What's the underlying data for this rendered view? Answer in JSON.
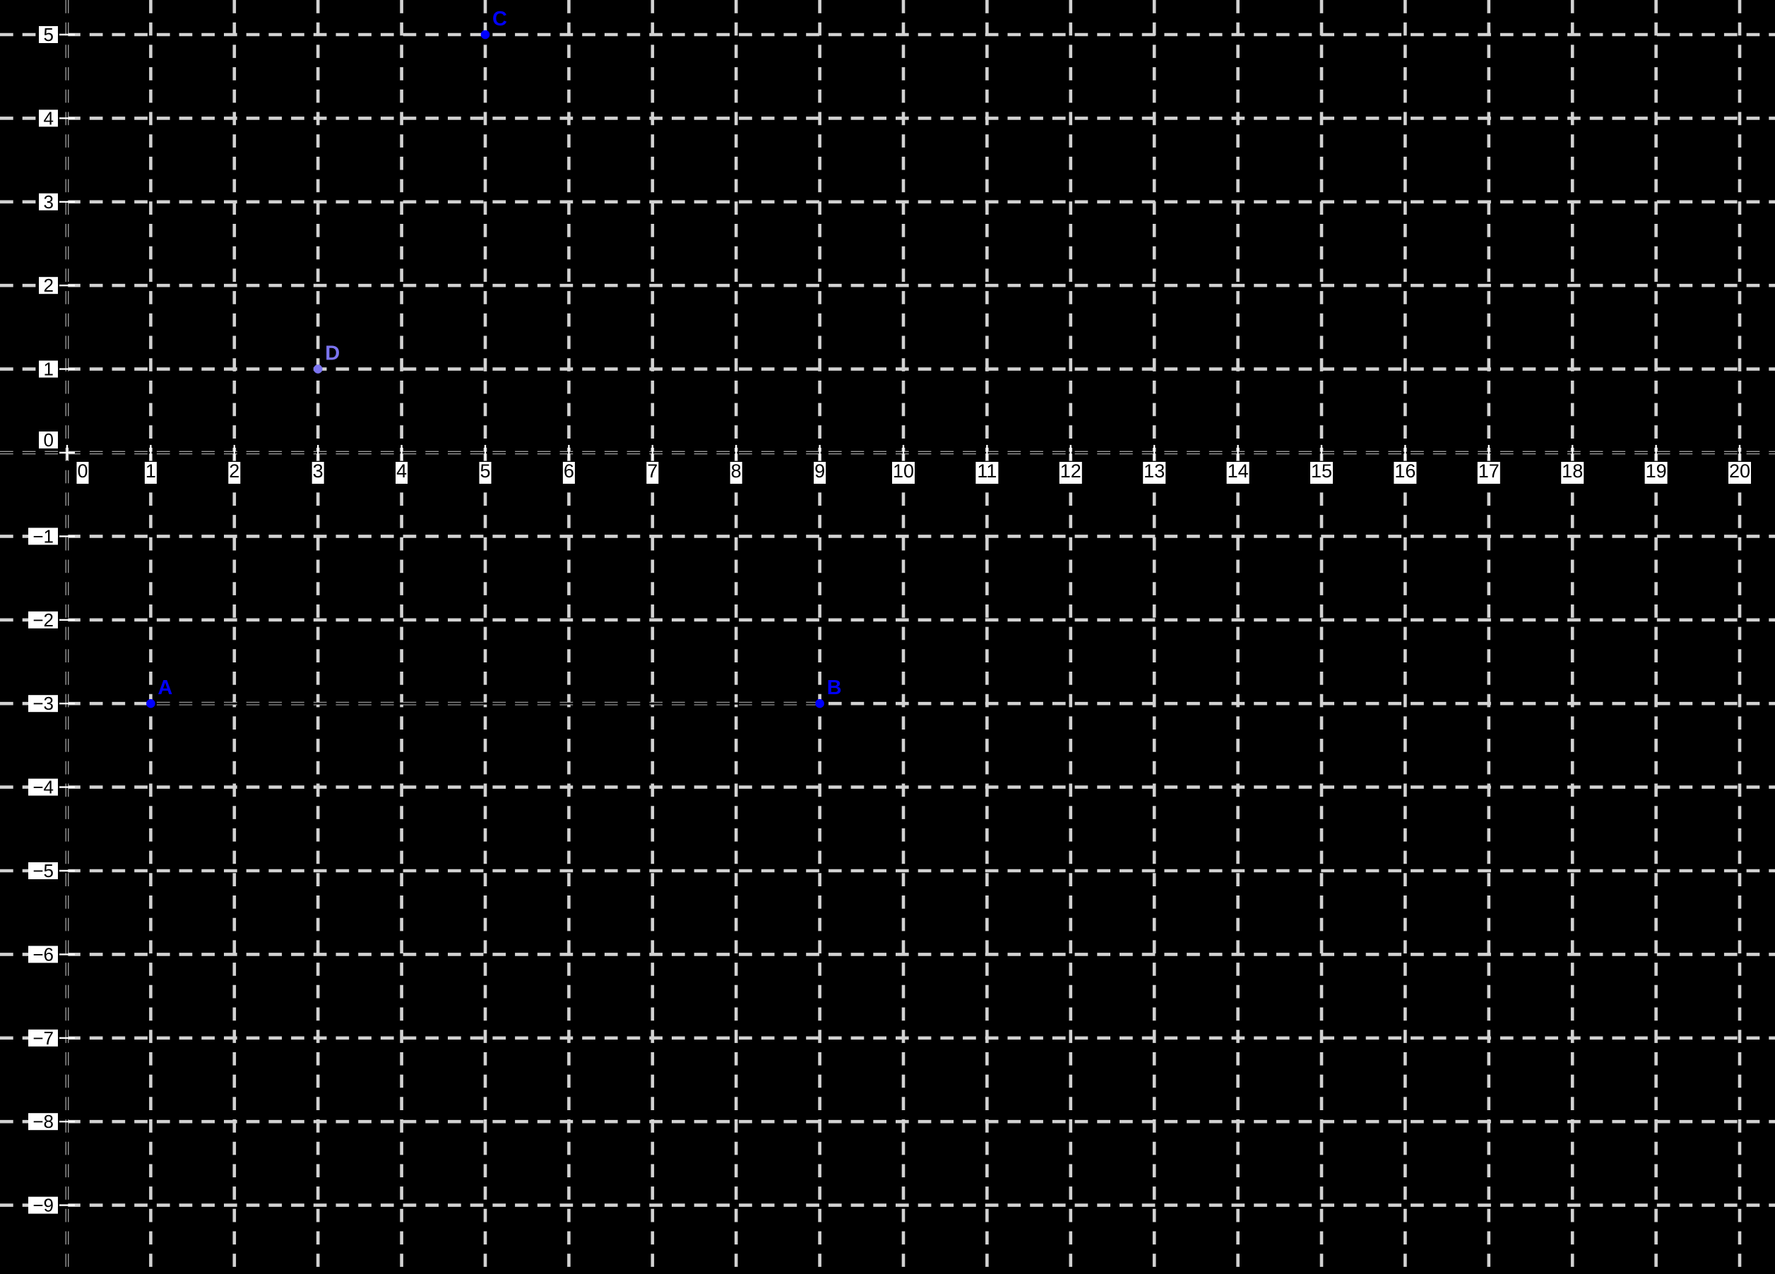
{
  "canvas": {
    "background": "#000000",
    "grid_color": "#d2d2d2",
    "tick_color": "#ffffff",
    "axis_overlay_color": "#000000",
    "label_text_color": "#000000",
    "label_box_color": "#ffffff"
  },
  "chart_data": {
    "type": "scatter",
    "title": "",
    "x_axis": {
      "label": "",
      "ticks": [
        0,
        1,
        2,
        3,
        4,
        5,
        6,
        7,
        8,
        9,
        10,
        11,
        12,
        13,
        14,
        15,
        16,
        17,
        18,
        19,
        20
      ]
    },
    "y_axis": {
      "label": "",
      "ticks": [
        5,
        4,
        3,
        2,
        1,
        0,
        -1,
        -2,
        -3,
        -4,
        -5,
        -6,
        -7,
        -8,
        -9
      ]
    },
    "grid": {
      "visible": true,
      "style": "dashed",
      "cell_size_units": 1
    },
    "points": [
      {
        "label": "A",
        "x": 1,
        "y": -3,
        "color": "#0000ff"
      },
      {
        "label": "B",
        "x": 9,
        "y": -3,
        "color": "#0000ff"
      },
      {
        "label": "C",
        "x": 5,
        "y": 5,
        "color": "#0000ff"
      },
      {
        "label": "D",
        "x": 3,
        "y": 1,
        "color": "#7b74f0"
      }
    ],
    "segments": [
      {
        "endpoints": "A-B",
        "from": [
          1,
          -3
        ],
        "to": [
          9,
          -3
        ],
        "color": "#000000"
      }
    ]
  }
}
